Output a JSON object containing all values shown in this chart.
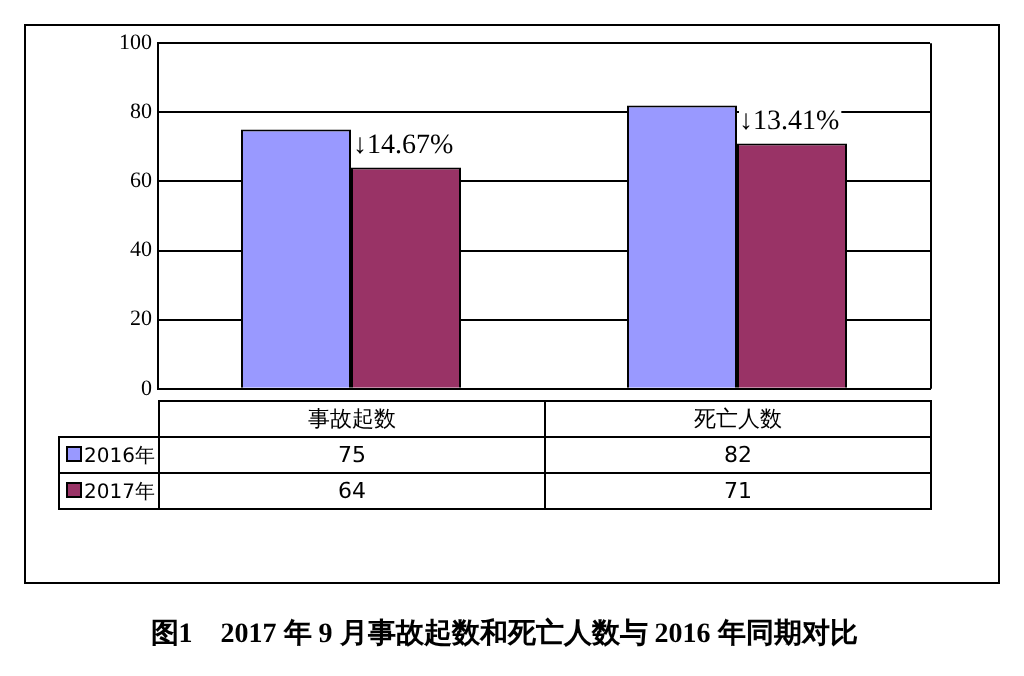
{
  "chart_data": {
    "type": "bar",
    "title": "图1　2017 年 9 月事故起数和死亡人数与 2016 年同期对比",
    "categories": [
      "事故起数",
      "死亡人数"
    ],
    "series": [
      {
        "name": "2016年",
        "color": "#9999ff",
        "values": [
          75,
          82
        ]
      },
      {
        "name": "2017年",
        "color": "#993366",
        "values": [
          64,
          71
        ]
      }
    ],
    "ylim": [
      0,
      100
    ],
    "yticks": [
      0,
      20,
      40,
      60,
      80,
      100
    ],
    "grid": "y",
    "legend": "bottom",
    "data_labels": true,
    "annotations": [
      {
        "text": "↓14.67%",
        "x": "事故起数",
        "y": 75
      },
      {
        "text": "↓13.41%",
        "x": "死亡人数",
        "y": 82
      }
    ]
  }
}
